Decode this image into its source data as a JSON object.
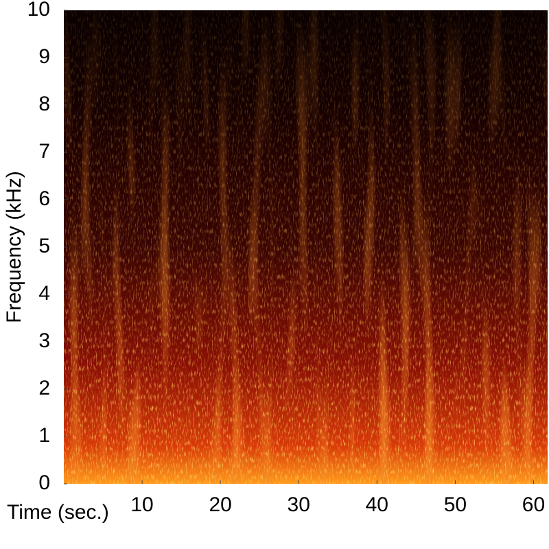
{
  "chart_data": {
    "type": "spectrogram",
    "x_label": "Time (sec.)",
    "y_label": "Frequency (kHz)",
    "xlim": [
      0,
      61.8
    ],
    "xticks": [
      10,
      20,
      30,
      40,
      50,
      60
    ],
    "ylim": [
      0,
      10
    ],
    "yticks": [
      0,
      1,
      2,
      3,
      4,
      5,
      6,
      7,
      8,
      9,
      10
    ]
  }
}
